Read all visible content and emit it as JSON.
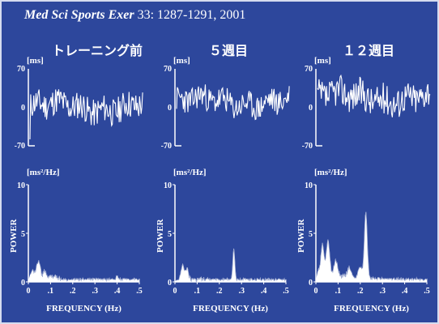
{
  "citation": {
    "journal": "Med Sci Sports Exer",
    "details": " 33: 1287-1291, 2001"
  },
  "panels": [
    {
      "title": "トレーニング前",
      "seed": 11,
      "amp": 0.55,
      "bias": 0.0,
      "floor": 0.0,
      "bumps": [
        [
          0.045,
          2.0,
          0.012
        ],
        [
          0.075,
          0.9,
          0.01
        ],
        [
          0.02,
          1.0,
          0.01
        ],
        [
          0.11,
          0.4,
          0.02
        ],
        [
          0.4,
          0.4,
          0.006
        ]
      ]
    },
    {
      "title": "５週目",
      "seed": 23,
      "amp": 0.5,
      "bias": 0.15,
      "floor": 0.0,
      "bumps": [
        [
          0.035,
          1.7,
          0.01
        ],
        [
          0.055,
          1.2,
          0.008
        ],
        [
          0.265,
          3.2,
          0.006
        ]
      ]
    },
    {
      "title": "１２週目",
      "seed": 37,
      "amp": 0.6,
      "bias": 0.3,
      "floor": 0.8,
      "bumps": [
        [
          0.03,
          3.0,
          0.01
        ],
        [
          0.055,
          3.6,
          0.01
        ],
        [
          0.09,
          1.5,
          0.012
        ],
        [
          0.15,
          1.0,
          0.012
        ],
        [
          0.2,
          1.2,
          0.012
        ],
        [
          0.225,
          6.7,
          0.009
        ]
      ]
    }
  ],
  "time_axis": {
    "unit": "[ms]",
    "ticks": [
      "70",
      "0",
      "-70"
    ]
  },
  "psd_axis": {
    "unit": "[ms²/Hz]",
    "yticks": [
      "10",
      "5",
      "0"
    ],
    "xticks": [
      "0",
      ".1",
      ".2",
      ".3",
      ".4",
      ".5"
    ],
    "ylabel": "POWER",
    "xlabel": "FREQUENCY (Hz)"
  },
  "chart_data": [
    {
      "type": "line",
      "title": "トレーニング前",
      "ylabel": "[ms]",
      "ylim": [
        -70,
        70
      ]
    },
    {
      "type": "area",
      "title": "トレーニング前",
      "xlabel": "FREQUENCY (Hz)",
      "ylabel": "POWER [ms²/Hz]",
      "xlim": [
        0,
        0.5
      ],
      "ylim": [
        0,
        10
      ],
      "peaks": [
        {
          "x": 0.045,
          "y": 2.3
        },
        {
          "x": 0.4,
          "y": 0.4
        }
      ]
    },
    {
      "type": "line",
      "title": "５週目",
      "ylabel": "[ms]",
      "ylim": [
        -70,
        70
      ]
    },
    {
      "type": "area",
      "title": "５週目",
      "xlabel": "FREQUENCY (Hz)",
      "ylabel": "POWER [ms²/Hz]",
      "xlim": [
        0,
        0.5
      ],
      "ylim": [
        0,
        10
      ],
      "peaks": [
        {
          "x": 0.04,
          "y": 1.8
        },
        {
          "x": 0.265,
          "y": 3.3
        }
      ]
    },
    {
      "type": "line",
      "title": "１２週目",
      "ylabel": "[ms]",
      "ylim": [
        -70,
        70
      ]
    },
    {
      "type": "area",
      "title": "１２週目",
      "xlabel": "FREQUENCY (Hz)",
      "ylabel": "POWER [ms²/Hz]",
      "xlim": [
        0,
        0.5
      ],
      "ylim": [
        0,
        10
      ],
      "peaks": [
        {
          "x": 0.055,
          "y": 4.5
        },
        {
          "x": 0.225,
          "y": 6.9
        }
      ]
    }
  ]
}
